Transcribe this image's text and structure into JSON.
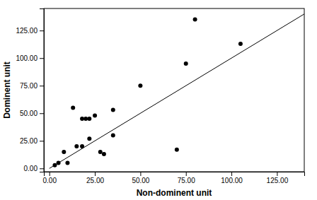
{
  "chart_data": {
    "type": "scatter",
    "xlabel": "Non-dominent unit",
    "ylabel": "Dominent unit",
    "x": [
      3,
      5,
      8,
      10,
      13,
      15,
      18,
      18,
      20,
      22,
      22,
      25,
      28,
      30,
      35,
      35,
      50,
      70,
      75,
      80,
      105
    ],
    "values": [
      3,
      5,
      15,
      5,
      55,
      20,
      20,
      45,
      45,
      45,
      27,
      48,
      15,
      13,
      53,
      30,
      75,
      17,
      95,
      135,
      113
    ],
    "color": "black",
    "reference_line": {
      "x": [
        0,
        140
      ],
      "y": [
        0,
        140
      ],
      "color": "black"
    },
    "xlim": [
      -3,
      140
    ],
    "ylim": [
      -3,
      145
    ],
    "xticks": [
      {
        "value": 0,
        "label": "0.00"
      },
      {
        "value": 25,
        "label": "25.00"
      },
      {
        "value": 50,
        "label": "50.00"
      },
      {
        "value": 75,
        "label": "75.00"
      },
      {
        "value": 100,
        "label": "100.00"
      },
      {
        "value": 125,
        "label": "125.00"
      }
    ],
    "yticks": [
      {
        "value": 0,
        "label": "0.00"
      },
      {
        "value": 25,
        "label": "25.00"
      },
      {
        "value": 50,
        "label": "50.00"
      },
      {
        "value": 75,
        "label": "75.00"
      },
      {
        "value": 100,
        "label": "100.00"
      },
      {
        "value": 125,
        "label": "125.00"
      }
    ]
  }
}
